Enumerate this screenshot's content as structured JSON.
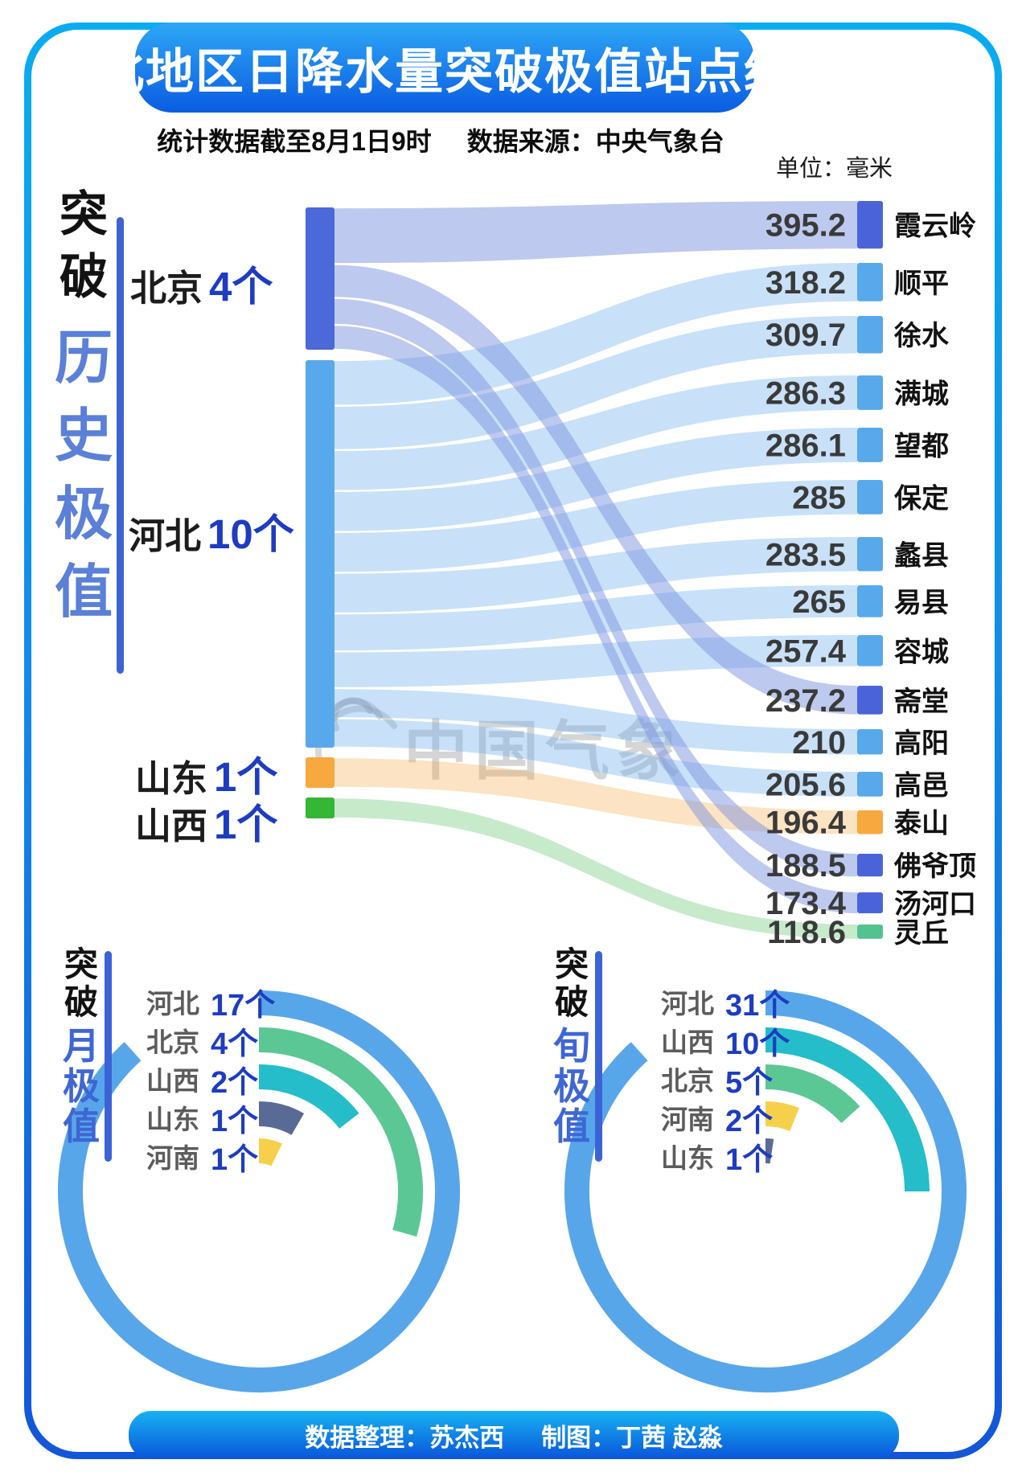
{
  "page": {
    "title": "华北地区日降水量突破极值站点统计",
    "subtitle_left": "统计数据截至8月1日9时",
    "subtitle_right": "数据来源：中央气象台",
    "unit_label": "单位：毫米",
    "watermark": "中国气象",
    "footer": {
      "data_credit": "数据整理：苏杰西",
      "chart_credit": "制图：丁茜 赵淼"
    }
  },
  "sections": {
    "history": {
      "tag_black": "突破",
      "tag_blue": "历史极值"
    },
    "month": {
      "tag_black": "突破",
      "tag_blue": "月极值"
    },
    "xun": {
      "tag_black": "突破",
      "tag_blue": "旬极值"
    }
  },
  "colors": {
    "count_blue": "#1d3cc2",
    "tag_blue": "#5b80d8",
    "line_blue": "#3c63d6",
    "provinces": {
      "北京": {
        "bar": "#4b69d9",
        "node": "#4b63d9",
        "ribbon": "rgba(125,147,224,0.5)"
      },
      "河北": {
        "bar": "#58a9ec",
        "node": "#58a9ec",
        "ribbon": "rgba(111,176,236,0.38)"
      },
      "山东": {
        "bar": "#f7a93f",
        "node": "#f7a93f",
        "ribbon": "rgba(244,168,67,0.32)"
      },
      "山西": {
        "bar": "#35b635",
        "node": "#52c390",
        "ribbon": "rgba(95,196,106,0.35)"
      }
    },
    "ring": {
      "河北": "#58a6ea",
      "北京": "#5bc795",
      "山西": "#25bdc9",
      "山东": "#5a6a96",
      "河南": "#f7d04b"
    }
  },
  "chart_data": [
    {
      "type": "sankey",
      "title": "突破历史极值",
      "unit": "毫米",
      "sources": [
        {
          "name": "北京",
          "count": 4,
          "count_label": "4个"
        },
        {
          "name": "河北",
          "count": 10,
          "count_label": "10个"
        },
        {
          "name": "山东",
          "count": 1,
          "count_label": "1个"
        },
        {
          "name": "山西",
          "count": 1,
          "count_label": "1个"
        }
      ],
      "stations": [
        {
          "name": "霞云岭",
          "value": 395.2,
          "province": "北京"
        },
        {
          "name": "顺平",
          "value": 318.2,
          "province": "河北"
        },
        {
          "name": "徐水",
          "value": 309.7,
          "province": "河北"
        },
        {
          "name": "满城",
          "value": 286.3,
          "province": "河北"
        },
        {
          "name": "望都",
          "value": 286.1,
          "province": "河北"
        },
        {
          "name": "保定",
          "value": 285,
          "province": "河北"
        },
        {
          "name": "蠡县",
          "value": 283.5,
          "province": "河北"
        },
        {
          "name": "易县",
          "value": 265,
          "province": "河北"
        },
        {
          "name": "容城",
          "value": 257.4,
          "province": "河北"
        },
        {
          "name": "斋堂",
          "value": 237.2,
          "province": "北京"
        },
        {
          "name": "高阳",
          "value": 210,
          "province": "河北"
        },
        {
          "name": "高邑",
          "value": 205.6,
          "province": "河北"
        },
        {
          "name": "泰山",
          "value": 196.4,
          "province": "山东"
        },
        {
          "name": "佛爷顶",
          "value": 188.5,
          "province": "北京"
        },
        {
          "name": "汤河口",
          "value": 173.4,
          "province": "北京"
        },
        {
          "name": "灵丘",
          "value": 118.6,
          "province": "山西"
        }
      ]
    },
    {
      "type": "radial-bar",
      "title": "突破月极值",
      "categories": [
        "河北",
        "北京",
        "山西",
        "山东",
        "河南"
      ],
      "values": [
        17,
        4,
        2,
        1,
        1
      ],
      "labels": [
        "17个",
        "4个",
        "2个",
        "1个",
        "1个"
      ],
      "legend_position": "upper-left-inside"
    },
    {
      "type": "radial-bar",
      "title": "突破旬极值",
      "categories": [
        "河北",
        "山西",
        "北京",
        "河南",
        "山东"
      ],
      "values": [
        31,
        10,
        5,
        2,
        1
      ],
      "labels": [
        "31个",
        "10个",
        "5个",
        "2个",
        "1个"
      ],
      "legend_position": "upper-left-inside"
    }
  ]
}
